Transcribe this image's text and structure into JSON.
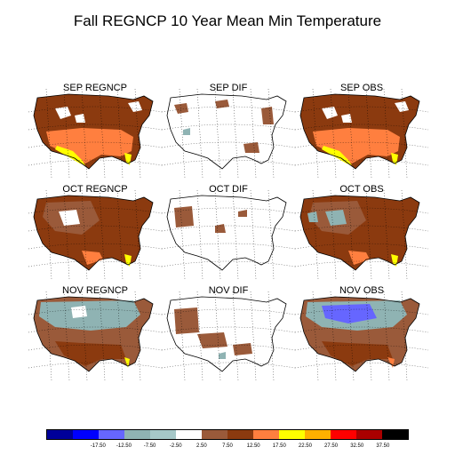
{
  "title": "Fall REGNCP 10 Year Mean Min Temperature",
  "panels": [
    {
      "label": "SEP REGNCP",
      "kind": "sep"
    },
    {
      "label": "SEP DIF",
      "kind": "dif1"
    },
    {
      "label": "SEP OBS",
      "kind": "sep"
    },
    {
      "label": "OCT REGNCP",
      "kind": "oct"
    },
    {
      "label": "OCT DIF",
      "kind": "dif2"
    },
    {
      "label": "OCT OBS",
      "kind": "octobs"
    },
    {
      "label": "NOV REGNCP",
      "kind": "nov"
    },
    {
      "label": "NOV DIF",
      "kind": "dif3"
    },
    {
      "label": "NOV OBS",
      "kind": "novobs"
    }
  ],
  "colorbar": {
    "colors": [
      "#000099",
      "#0000ff",
      "#6666ff",
      "#8fb3b3",
      "#a6c8c8",
      "#ffffff",
      "#9a5a3a",
      "#8b3a0f",
      "#ff7f3f",
      "#ffff00",
      "#ffb000",
      "#ff0000",
      "#aa0000",
      "#000000"
    ],
    "labels": [
      "-17.50",
      "-12.50",
      "-7.50",
      "-2.50",
      "2.50",
      "7.50",
      "12.50",
      "17.50",
      "22.50",
      "27.50",
      "32.50",
      "37.50"
    ]
  },
  "map_colors": {
    "dark_brown": "#8b3a0f",
    "brown": "#9a5a3a",
    "orange": "#ff7f3f",
    "yellow": "#ffff00",
    "gray_blue": "#8fb3b3",
    "blue": "#6666ff",
    "white": "#ffffff"
  }
}
